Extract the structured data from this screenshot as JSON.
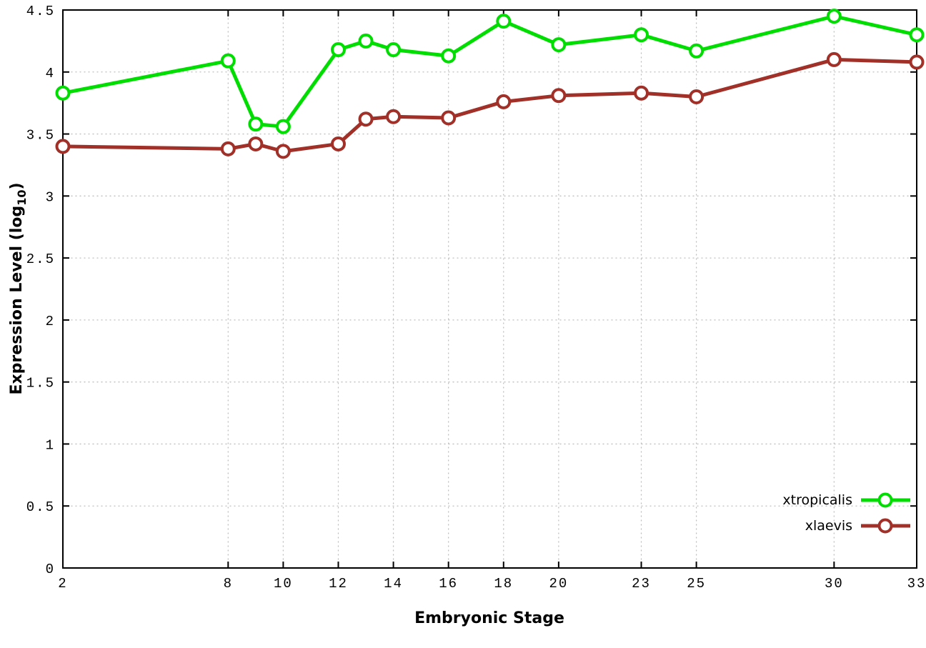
{
  "chart_data": {
    "type": "line",
    "title": "",
    "xlabel": "Embryonic Stage",
    "ylabel_main": "Expression Level (log",
    "ylabel_sub": "10",
    "ylabel_end": ")",
    "xlim": [
      2,
      33
    ],
    "ylim": [
      0,
      4.5
    ],
    "grid": true,
    "x_tick_values": [
      2,
      8,
      10,
      12,
      14,
      16,
      18,
      20,
      23,
      25,
      30,
      33
    ],
    "x_tick_labels": [
      "2",
      "8",
      "10",
      "12",
      "14",
      "16",
      "18",
      "20",
      "23",
      "25",
      "30",
      "33"
    ],
    "y_tick_values": [
      0,
      0.5,
      1,
      1.5,
      2,
      2.5,
      3,
      3.5,
      4,
      4.5
    ],
    "y_tick_labels": [
      "0",
      "0.5",
      "1",
      "1.5",
      "2",
      "2.5",
      "3",
      "3.5",
      "4",
      "4.5"
    ],
    "x": [
      2,
      8,
      9,
      10,
      12,
      13,
      14,
      16,
      18,
      20,
      23,
      25,
      30,
      33
    ],
    "series": [
      {
        "name": "xtropicalis",
        "color": "#00dd00",
        "marker": "open-circle",
        "values": [
          3.83,
          4.09,
          3.58,
          3.56,
          4.18,
          4.25,
          4.18,
          4.13,
          4.41,
          4.22,
          4.3,
          4.17,
          4.45,
          4.3
        ]
      },
      {
        "name": "xlaevis",
        "color": "#a03028",
        "marker": "open-circle",
        "values": [
          3.4,
          3.38,
          3.42,
          3.36,
          3.42,
          3.62,
          3.64,
          3.63,
          3.76,
          3.81,
          3.83,
          3.8,
          4.1,
          4.08
        ]
      }
    ],
    "legend_position": "inside-bottom-right",
    "colors": {
      "grid": "#bfbfbf",
      "border": "#000000",
      "background": "#ffffff"
    }
  }
}
